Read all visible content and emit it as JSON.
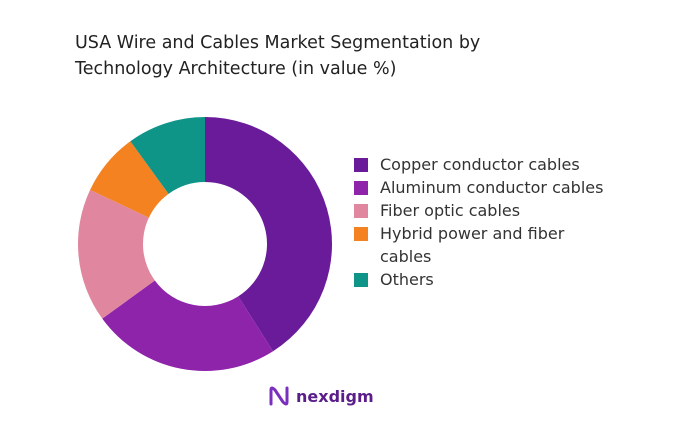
{
  "chart_data": {
    "type": "donut",
    "title": "USA Wire and Cables Market Segmentation by Technology Architecture (in value %)",
    "series": [
      {
        "name": "Copper conductor cables",
        "color": "#6a1b9a",
        "values": [
          41
        ]
      },
      {
        "name": "Aluminum conductor cables",
        "color": "#8e24aa",
        "values": [
          24
        ]
      },
      {
        "name": "Fiber optic cables",
        "color": "#e0879f",
        "values": [
          17
        ]
      },
      {
        "name": "Hybrid power and fiber cables",
        "color": "#f58220",
        "values": [
          8
        ]
      },
      {
        "name": "Others",
        "color": "#0f9488",
        "values": [
          10
        ]
      }
    ]
  },
  "logo": "nexdigm"
}
